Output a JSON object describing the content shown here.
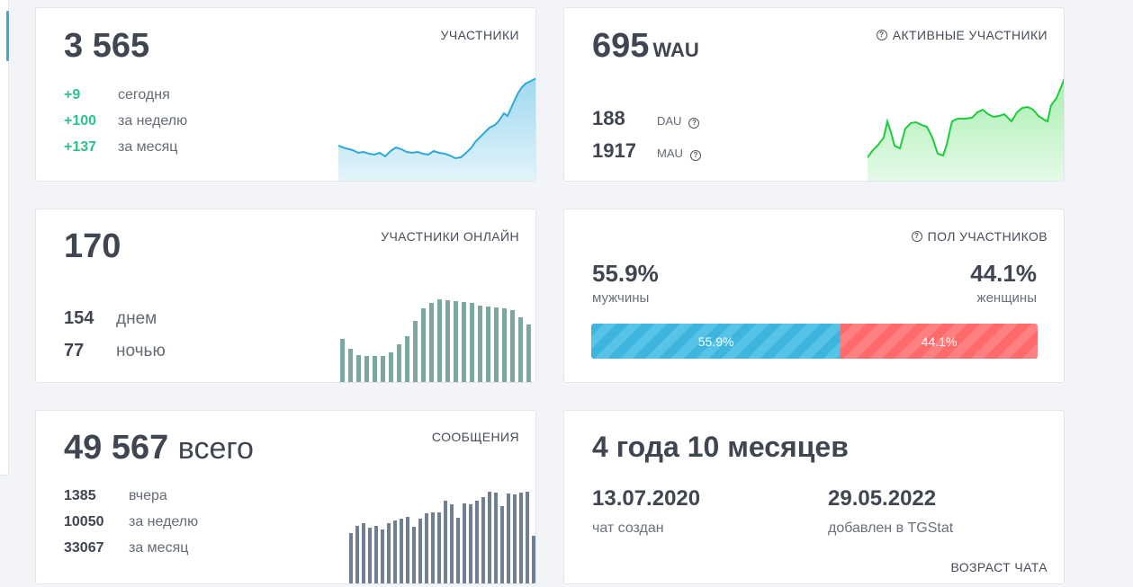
{
  "members": {
    "title": "УЧАСТНИКИ",
    "total": "3 565",
    "rows": [
      {
        "value": "+9",
        "label": "сегодня"
      },
      {
        "value": "+100",
        "label": "за неделю"
      },
      {
        "value": "+137",
        "label": "за месяц"
      }
    ],
    "chart_color": "#2fa9d8"
  },
  "active": {
    "title": "АКТИВНЫЕ УЧАСТНИКИ",
    "wau": "695",
    "wau_label": "WAU",
    "dau": "188",
    "dau_label": "DAU",
    "mau": "1917",
    "mau_label": "MAU",
    "chart_color": "#1fcc3a"
  },
  "online": {
    "title": "УЧАСТНИКИ ОНЛАЙН",
    "total": "170",
    "day_value": "154",
    "day_label": "днем",
    "night_value": "77",
    "night_label": "ночью",
    "bar_color": "#7aa79f"
  },
  "gender": {
    "title": "ПОЛ УЧАСТНИКОВ",
    "male_pct": "55.9%",
    "male_label": "мужчины",
    "female_pct": "44.1%",
    "female_label": "женщины",
    "male_fraction": 0.559,
    "female_fraction": 0.441
  },
  "messages": {
    "title": "СООБЩЕНИЯ",
    "total": "49 567",
    "total_suffix": "всего",
    "rows": [
      {
        "value": "1385",
        "label": "вчера"
      },
      {
        "value": "10050",
        "label": "за неделю"
      },
      {
        "value": "33067",
        "label": "за месяц"
      }
    ],
    "bar_color": "#6f7f94"
  },
  "age": {
    "title": "ВОЗРАСТ ЧАТА",
    "headline": "4 года 10 месяцев",
    "created_date": "13.07.2020",
    "created_label": "чат создан",
    "added_date": "29.05.2022",
    "added_label": "добавлен в TGStat"
  }
}
